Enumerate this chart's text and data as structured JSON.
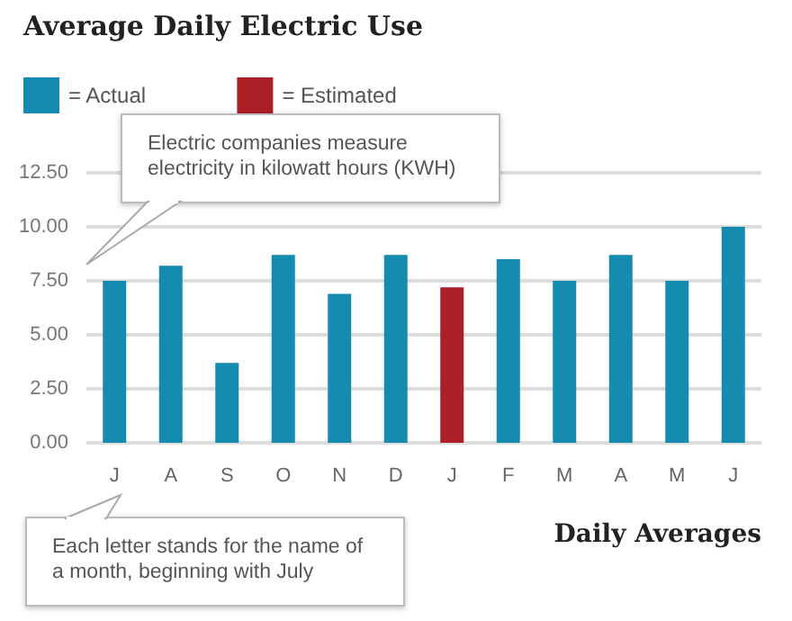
{
  "chart_data": {
    "type": "bar",
    "title": "Average Daily Electric Use",
    "xlabel": "Daily Averages",
    "categories": [
      "J",
      "A",
      "S",
      "O",
      "N",
      "D",
      "J",
      "F",
      "M",
      "A",
      "M",
      "J"
    ],
    "series": [
      {
        "name": "= Actual",
        "color": "#168bb0",
        "values": [
          7.5,
          8.2,
          3.7,
          8.7,
          6.9,
          8.7,
          null,
          8.5,
          7.5,
          8.7,
          7.5,
          10.0
        ]
      },
      {
        "name": "= Estimated",
        "color": "#ab1f26",
        "values": [
          null,
          null,
          null,
          null,
          null,
          null,
          7.2,
          null,
          null,
          null,
          null,
          null
        ]
      }
    ],
    "ylim": [
      0,
      12.5
    ],
    "yticks": [
      {
        "value": 0,
        "label": "0.00"
      },
      {
        "value": 2.5,
        "label": "2.50"
      },
      {
        "value": 5,
        "label": "5.00"
      },
      {
        "value": 7.5,
        "label": "7.50"
      },
      {
        "value": 10,
        "label": "10.00"
      },
      {
        "value": 12.5,
        "label": "12.50"
      }
    ],
    "grid": "y",
    "legend": "top left",
    "annotations": [
      "Electric companies measure electricity in kilowatt hours (KWH)",
      "Each letter stands for the name of a month, beginning with July"
    ]
  }
}
